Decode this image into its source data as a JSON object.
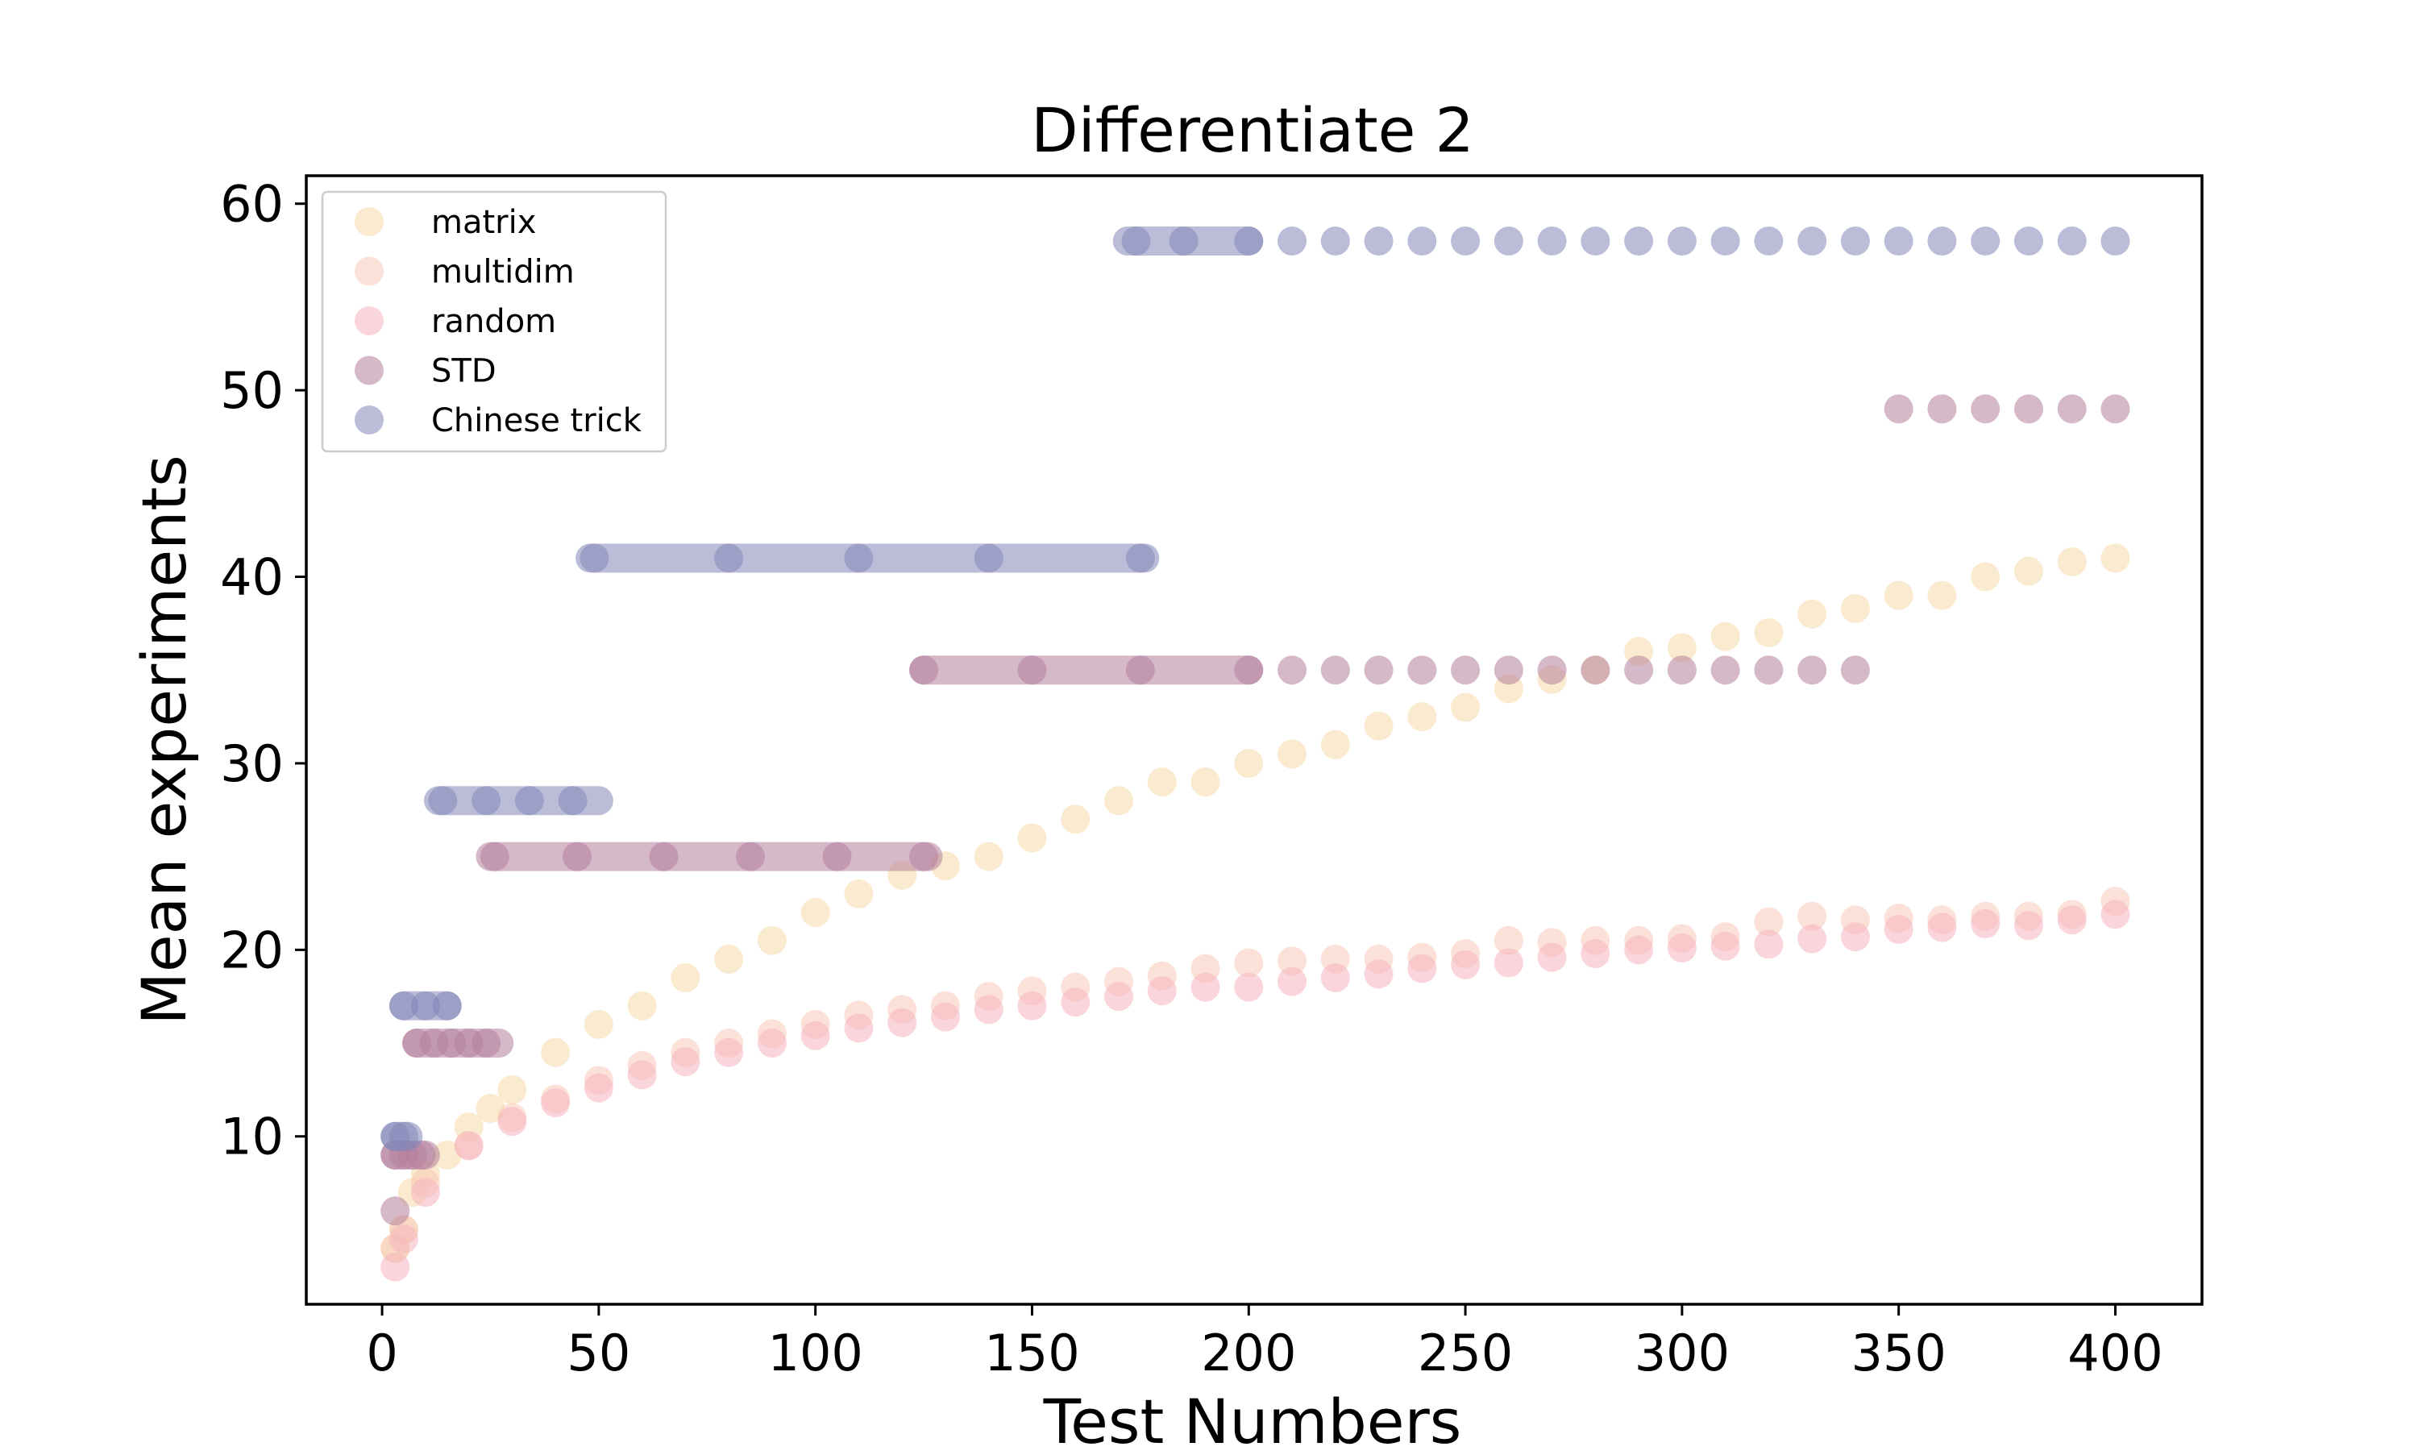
{
  "chart_data": {
    "type": "scatter",
    "title": "Differentiate 2",
    "xlabel": "Test Numbers",
    "ylabel": "Mean experiments",
    "xlim": [
      -17.5,
      420
    ],
    "ylim": [
      1.0,
      61.5
    ],
    "xticks": [
      0,
      50,
      100,
      150,
      200,
      250,
      300,
      350,
      400
    ],
    "xtick_labels": [
      "0",
      "50",
      "100",
      "150",
      "200",
      "250",
      "300",
      "350",
      "400"
    ],
    "yticks": [
      10,
      20,
      30,
      40,
      50,
      60
    ],
    "ytick_labels": [
      "10",
      "20",
      "30",
      "40",
      "50",
      "60"
    ],
    "grid": false,
    "legend_position": "top-left",
    "marker_alpha": 0.55,
    "series": [
      {
        "name": "matrix",
        "color": "#f5d9a8",
        "points": [
          [
            3,
            4
          ],
          [
            5,
            5
          ],
          [
            7,
            7
          ],
          [
            10,
            8
          ],
          [
            15,
            9
          ],
          [
            20,
            10.5
          ],
          [
            25,
            11.5
          ],
          [
            30,
            12.5
          ],
          [
            40,
            14.5
          ],
          [
            50,
            16
          ],
          [
            60,
            17
          ],
          [
            70,
            18.5
          ],
          [
            80,
            19.5
          ],
          [
            90,
            20.5
          ],
          [
            100,
            22
          ],
          [
            110,
            23
          ],
          [
            120,
            24
          ],
          [
            130,
            24.5
          ],
          [
            140,
            25
          ],
          [
            150,
            26
          ],
          [
            160,
            27
          ],
          [
            170,
            28
          ],
          [
            180,
            29
          ],
          [
            190,
            29
          ],
          [
            200,
            30
          ],
          [
            210,
            30.5
          ],
          [
            220,
            31
          ],
          [
            230,
            32
          ],
          [
            240,
            32.5
          ],
          [
            250,
            33
          ],
          [
            260,
            34
          ],
          [
            270,
            34.5
          ],
          [
            280,
            35
          ],
          [
            290,
            36
          ],
          [
            300,
            36.2
          ],
          [
            310,
            36.8
          ],
          [
            320,
            37
          ],
          [
            330,
            38
          ],
          [
            340,
            38.3
          ],
          [
            350,
            39
          ],
          [
            360,
            39
          ],
          [
            370,
            40
          ],
          [
            380,
            40.3
          ],
          [
            390,
            40.8
          ],
          [
            400,
            41
          ]
        ]
      },
      {
        "name": "multidim",
        "color": "#f7c9b8",
        "points": [
          [
            3,
            4
          ],
          [
            5,
            5
          ],
          [
            10,
            7.5
          ],
          [
            20,
            9.5
          ],
          [
            30,
            11
          ],
          [
            40,
            12
          ],
          [
            50,
            13
          ],
          [
            60,
            13.8
          ],
          [
            70,
            14.5
          ],
          [
            80,
            15
          ],
          [
            90,
            15.5
          ],
          [
            100,
            16
          ],
          [
            110,
            16.5
          ],
          [
            120,
            16.8
          ],
          [
            130,
            17
          ],
          [
            140,
            17.5
          ],
          [
            150,
            17.8
          ],
          [
            160,
            18
          ],
          [
            170,
            18.3
          ],
          [
            180,
            18.6
          ],
          [
            190,
            19
          ],
          [
            200,
            19.3
          ],
          [
            210,
            19.4
          ],
          [
            220,
            19.5
          ],
          [
            230,
            19.5
          ],
          [
            240,
            19.6
          ],
          [
            250,
            19.8
          ],
          [
            260,
            20.5
          ],
          [
            270,
            20.4
          ],
          [
            280,
            20.5
          ],
          [
            290,
            20.5
          ],
          [
            300,
            20.6
          ],
          [
            310,
            20.7
          ],
          [
            320,
            21.5
          ],
          [
            330,
            21.8
          ],
          [
            340,
            21.6
          ],
          [
            350,
            21.7
          ],
          [
            360,
            21.6
          ],
          [
            370,
            21.8
          ],
          [
            380,
            21.8
          ],
          [
            390,
            21.9
          ],
          [
            400,
            22.6
          ]
        ]
      },
      {
        "name": "random",
        "color": "#f5b4c0",
        "points": [
          [
            3,
            3
          ],
          [
            5,
            4.5
          ],
          [
            10,
            7
          ],
          [
            20,
            9.5
          ],
          [
            30,
            10.8
          ],
          [
            40,
            11.8
          ],
          [
            50,
            12.6
          ],
          [
            60,
            13.3
          ],
          [
            70,
            14
          ],
          [
            80,
            14.5
          ],
          [
            90,
            15
          ],
          [
            100,
            15.4
          ],
          [
            110,
            15.8
          ],
          [
            120,
            16.1
          ],
          [
            130,
            16.4
          ],
          [
            140,
            16.8
          ],
          [
            150,
            17
          ],
          [
            160,
            17.2
          ],
          [
            170,
            17.5
          ],
          [
            180,
            17.8
          ],
          [
            190,
            18
          ],
          [
            200,
            18
          ],
          [
            210,
            18.3
          ],
          [
            220,
            18.5
          ],
          [
            230,
            18.7
          ],
          [
            240,
            19
          ],
          [
            250,
            19.2
          ],
          [
            260,
            19.3
          ],
          [
            270,
            19.6
          ],
          [
            280,
            19.8
          ],
          [
            290,
            20
          ],
          [
            300,
            20.1
          ],
          [
            310,
            20.2
          ],
          [
            320,
            20.3
          ],
          [
            330,
            20.6
          ],
          [
            340,
            20.7
          ],
          [
            350,
            21.1
          ],
          [
            360,
            21.2
          ],
          [
            370,
            21.4
          ],
          [
            380,
            21.3
          ],
          [
            390,
            21.6
          ],
          [
            400,
            21.9
          ]
        ]
      },
      {
        "name": "STD",
        "color": "#b57f9c",
        "points": [
          [
            3,
            6
          ],
          [
            3,
            9
          ],
          [
            5,
            9
          ],
          [
            7,
            9
          ],
          [
            9,
            9
          ],
          [
            8,
            15
          ],
          [
            12,
            15
          ],
          [
            16,
            15
          ],
          [
            20,
            15
          ],
          [
            24,
            15
          ],
          [
            26,
            25
          ],
          [
            45,
            25
          ],
          [
            65,
            25
          ],
          [
            85,
            25
          ],
          [
            105,
            25
          ],
          [
            125,
            25
          ],
          [
            125,
            35
          ],
          [
            150,
            35
          ],
          [
            175,
            35
          ],
          [
            200,
            35
          ],
          [
            210,
            35
          ],
          [
            220,
            35
          ],
          [
            230,
            35
          ],
          [
            240,
            35
          ],
          [
            250,
            35
          ],
          [
            260,
            35
          ],
          [
            270,
            35
          ],
          [
            280,
            35
          ],
          [
            290,
            35
          ],
          [
            300,
            35
          ],
          [
            310,
            35
          ],
          [
            320,
            35
          ],
          [
            330,
            35
          ],
          [
            340,
            35
          ],
          [
            350,
            49
          ],
          [
            360,
            49
          ],
          [
            370,
            49
          ],
          [
            380,
            49
          ],
          [
            390,
            49
          ],
          [
            400,
            49
          ]
        ]
      },
      {
        "name": "Chinese trick",
        "color": "#8487b8",
        "points": [
          [
            3,
            10
          ],
          [
            5,
            10
          ],
          [
            5,
            17
          ],
          [
            10,
            17
          ],
          [
            15,
            17
          ],
          [
            14,
            28
          ],
          [
            24,
            28
          ],
          [
            34,
            28
          ],
          [
            44,
            28
          ],
          [
            49,
            41
          ],
          [
            80,
            41
          ],
          [
            110,
            41
          ],
          [
            140,
            41
          ],
          [
            175,
            41
          ],
          [
            174,
            58
          ],
          [
            185,
            58
          ],
          [
            200,
            58
          ],
          [
            210,
            58
          ],
          [
            220,
            58
          ],
          [
            230,
            58
          ],
          [
            240,
            58
          ],
          [
            250,
            58
          ],
          [
            260,
            58
          ],
          [
            270,
            58
          ],
          [
            280,
            58
          ],
          [
            290,
            58
          ],
          [
            300,
            58
          ],
          [
            310,
            58
          ],
          [
            320,
            58
          ],
          [
            330,
            58
          ],
          [
            340,
            58
          ],
          [
            350,
            58
          ],
          [
            360,
            58
          ],
          [
            370,
            58
          ],
          [
            380,
            58
          ],
          [
            390,
            58
          ],
          [
            400,
            58
          ]
        ]
      }
    ],
    "bands": [
      {
        "series": "STD",
        "x": [
          3,
          10
        ],
        "y": 9
      },
      {
        "series": "STD",
        "x": [
          8,
          27
        ],
        "y": 15
      },
      {
        "series": "STD",
        "x": [
          25,
          126
        ],
        "y": 25
      },
      {
        "series": "STD",
        "x": [
          125,
          200
        ],
        "y": 35
      },
      {
        "series": "Chinese trick",
        "x": [
          3,
          6
        ],
        "y": 10
      },
      {
        "series": "Chinese trick",
        "x": [
          5,
          15
        ],
        "y": 17
      },
      {
        "series": "Chinese trick",
        "x": [
          13,
          50
        ],
        "y": 28
      },
      {
        "series": "Chinese trick",
        "x": [
          48,
          176
        ],
        "y": 41
      },
      {
        "series": "Chinese trick",
        "x": [
          172,
          200
        ],
        "y": 58
      }
    ]
  }
}
